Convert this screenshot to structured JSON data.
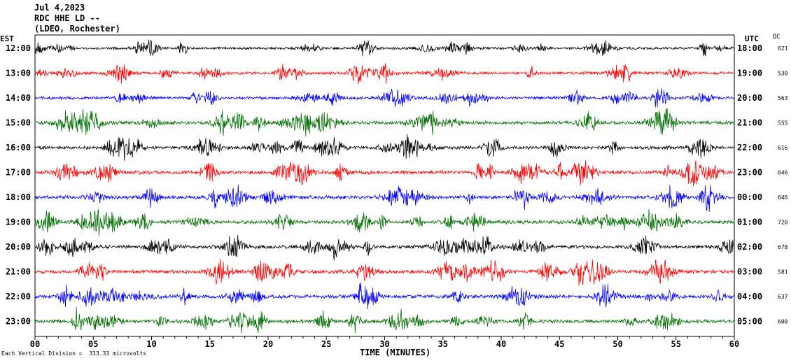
{
  "header": {
    "line1": "Jul 4,2023",
    "line2": "RDC HHE LD --",
    "line3": "(LDEO, Rochester)"
  },
  "left_axis_title": "EST",
  "right_axis_title": "UTC",
  "dc_title": "DC",
  "footer": {
    "note": "Each Vertical Division =  333.33 microvolts"
  },
  "colors": {
    "trace_cycle": [
      "#000000",
      "#ff0000",
      "#0000ff",
      "#007000"
    ],
    "axis": "#000000",
    "background": "#ffffff"
  },
  "chart_data": {
    "type": "line",
    "subtype": "helicorder",
    "title": "",
    "xlabel": "TIME (MINUTES)",
    "xlim": [
      0,
      60
    ],
    "x_ticks": [
      0,
      5,
      10,
      15,
      20,
      25,
      30,
      35,
      40,
      45,
      50,
      55,
      60
    ],
    "x_tick_labels": [
      "00",
      "05",
      "10",
      "15",
      "20",
      "25",
      "30",
      "35",
      "40",
      "45",
      "50",
      "55",
      "60"
    ],
    "minor_tick_step": 1,
    "rows": [
      {
        "est": "12:00",
        "utc": "18:00",
        "dc": "621",
        "amplitude": 0.7,
        "color": "#000000"
      },
      {
        "est": "13:00",
        "utc": "19:00",
        "dc": "530",
        "amplitude": 0.8,
        "color": "#ff0000"
      },
      {
        "est": "14:00",
        "utc": "20:00",
        "dc": "563",
        "amplitude": 0.8,
        "color": "#0000ff"
      },
      {
        "est": "15:00",
        "utc": "21:00",
        "dc": "555",
        "amplitude": 1.0,
        "color": "#007000"
      },
      {
        "est": "16:00",
        "utc": "22:00",
        "dc": "616",
        "amplitude": 0.9,
        "color": "#000000"
      },
      {
        "est": "17:00",
        "utc": "23:00",
        "dc": "646",
        "amplitude": 1.0,
        "color": "#ff0000"
      },
      {
        "est": "18:00",
        "utc": "00:00",
        "dc": "646",
        "amplitude": 1.0,
        "color": "#0000ff"
      },
      {
        "est": "19:00",
        "utc": "01:00",
        "dc": "720",
        "amplitude": 1.0,
        "color": "#007000"
      },
      {
        "est": "20:00",
        "utc": "02:00",
        "dc": "678",
        "amplitude": 1.0,
        "color": "#000000"
      },
      {
        "est": "21:00",
        "utc": "03:00",
        "dc": "581",
        "amplitude": 1.0,
        "color": "#ff0000"
      },
      {
        "est": "22:00",
        "utc": "04:00",
        "dc": "637",
        "amplitude": 1.0,
        "color": "#0000ff"
      },
      {
        "est": "23:00",
        "utc": "05:00",
        "dc": "600",
        "amplitude": 1.0,
        "color": "#007000"
      }
    ],
    "grid": false,
    "legend": "none"
  }
}
